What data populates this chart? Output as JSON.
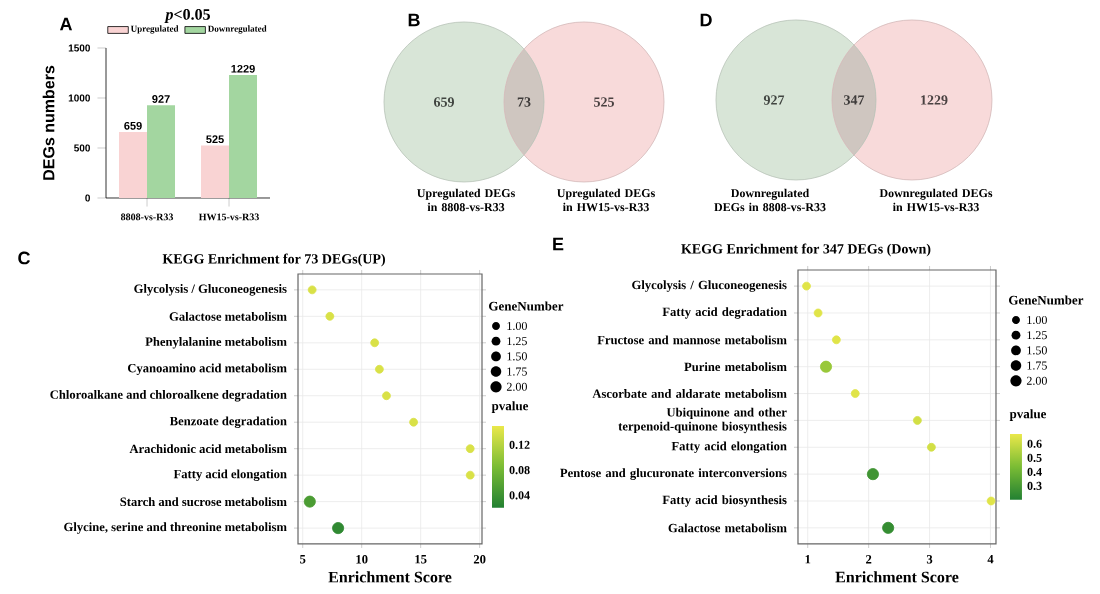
{
  "chart_data": [
    {
      "type": "bar",
      "title": "*p*<0.05",
      "annotations": [
        "A"
      ],
      "ylabel": "DEGs numbers",
      "categories": [
        "8808-vs-R33",
        "HW15-vs-R33"
      ],
      "series": [
        {
          "name": "Upregulated",
          "color": "#f9d3d3",
          "values": [
            659,
            525
          ]
        },
        {
          "name": "Downregulated",
          "color": "#a3d6a0",
          "values": [
            927,
            1229
          ]
        }
      ],
      "ylim": [
        0,
        1500
      ],
      "yticks": [
        0,
        500,
        1000,
        1500
      ],
      "data_labels": true,
      "legend": "top"
    },
    {
      "type": "other",
      "annotations": [
        "B"
      ],
      "categories": [
        "Upregulated DEGs in 8808-vs-R33",
        null,
        "Upregulated DEGs in HW15-vs-R33"
      ],
      "values": [
        659,
        73,
        525
      ],
      "colors": [
        "#d8e5d7",
        "#cfc6c0",
        "#f8dada"
      ],
      "data_labels": true
    },
    {
      "type": "other",
      "annotations": [
        "D"
      ],
      "categories": [
        "Downregulated DEGs in 8808-vs-R33",
        null,
        "Downregulated DEGs in HW15-vs-R33"
      ],
      "values": [
        927,
        347,
        1229
      ],
      "colors": [
        "#d8e5d7",
        "#cfc6c0",
        "#f8dada"
      ],
      "data_labels": true
    },
    {
      "type": "scatter",
      "orientation": "horizontal",
      "title": "KEGG Enrichment for 73 DEGs(UP)",
      "annotations": [
        "C"
      ],
      "xlabel": "Enrichment Score",
      "categories": [
        "Glycolysis / Gluconeogenesis",
        "Galactose metabolism",
        "Phenylalanine metabolism",
        "Cyanoamino acid metabolism",
        "Chloroalkane and chloroalkene degradation",
        "Benzoate degradation",
        "Arachidonic acid metabolism",
        "Fatty acid elongation",
        "Starch and sucrose metabolism",
        "Glycine, serine and threonine metabolism"
      ],
      "values": [
        5.8,
        7.3,
        11.1,
        11.5,
        12.1,
        14.4,
        19.2,
        19.2,
        5.6,
        8.0
      ],
      "sizes": [
        1,
        1,
        1,
        1,
        1,
        1,
        1,
        1,
        2,
        2
      ],
      "size_legend": [
        {
          "value": 1,
          "label": "1.00"
        },
        {
          "value": 1.25,
          "label": "1.25"
        },
        {
          "value": 1.5,
          "label": "1.50"
        },
        {
          "value": 1.75,
          "label": "1.75"
        },
        {
          "value": 2,
          "label": "2.00"
        }
      ],
      "legend_title": "GeneNumber",
      "cvalues": [
        0.14,
        0.14,
        0.14,
        0.14,
        0.14,
        0.14,
        0.14,
        0.14,
        0.05,
        0.03
      ],
      "clim": [
        0.02,
        0.15
      ],
      "cticks": [
        0.04,
        0.08,
        0.12
      ],
      "clabel": "pvalue",
      "xlim": [
        4.6,
        20.2
      ],
      "xticks": [
        5,
        10,
        15,
        20
      ],
      "grid": true,
      "marker": "circle"
    },
    {
      "type": "scatter",
      "orientation": "horizontal",
      "title": "KEGG Enrichment for 347 DEGs (Down)",
      "annotations": [
        "E"
      ],
      "xlabel": "Enrichment Score",
      "categories": [
        "Glycolysis / Gluconeogenesis",
        "Fatty acid degradation",
        "Fructose and mannose metabolism",
        "Purine metabolism",
        "Ascorbate and aldarate metabolism",
        "Ubiquinone and other terpenoid-quinone biosynthesis",
        "Fatty acid elongation",
        "Pentose and glucuronate interconversions",
        "Fatty acid biosynthesis",
        "Galactose metabolism"
      ],
      "values": [
        0.98,
        1.17,
        1.47,
        1.3,
        1.78,
        2.8,
        3.03,
        2.07,
        4.01,
        2.32
      ],
      "sizes": [
        1,
        1,
        1,
        2,
        1,
        1,
        1,
        2,
        1,
        2
      ],
      "size_legend": [
        {
          "value": 1,
          "label": "1.00"
        },
        {
          "value": 1.25,
          "label": "1.25"
        },
        {
          "value": 1.5,
          "label": "1.50"
        },
        {
          "value": 1.75,
          "label": "1.75"
        },
        {
          "value": 2,
          "label": "2.00"
        }
      ],
      "legend_title": "GeneNumber",
      "cvalues": [
        0.65,
        0.65,
        0.65,
        0.5,
        0.65,
        0.62,
        0.62,
        0.28,
        0.65,
        0.25
      ],
      "clim": [
        0.2,
        0.67
      ],
      "cticks": [
        0.3,
        0.4,
        0.5,
        0.6
      ],
      "clabel": "pvalue",
      "xlim": [
        0.84,
        4.09
      ],
      "xticks": [
        1,
        2,
        3,
        4
      ],
      "grid": true,
      "marker": "circle"
    }
  ]
}
